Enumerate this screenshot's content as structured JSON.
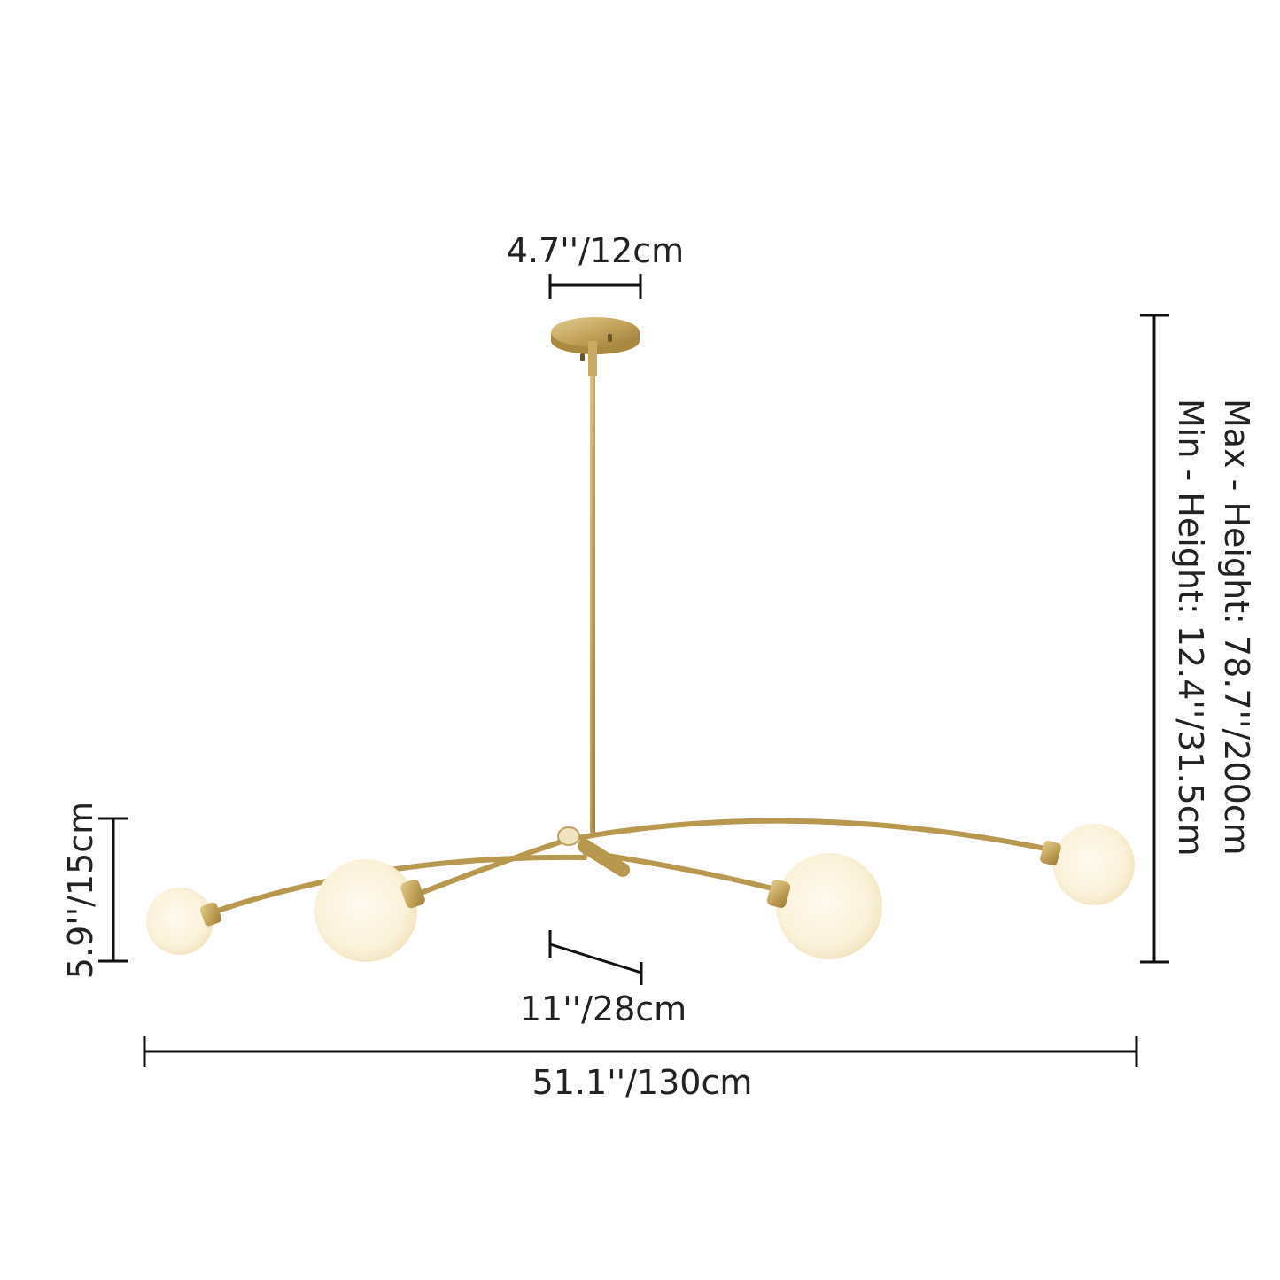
{
  "dimensions": {
    "canopy_width": "4.7''/12cm",
    "max_height": "Max - Height: 78.7''/200cm",
    "min_height": "Min - Height: 12.4''/31.5cm",
    "globe_height": "5.9''/15cm",
    "arm_offset": "11''/28cm",
    "total_width": "51.1''/130cm"
  },
  "colors": {
    "brass": "#b8974f",
    "globe": "#fbf3df",
    "line": "#111111"
  }
}
